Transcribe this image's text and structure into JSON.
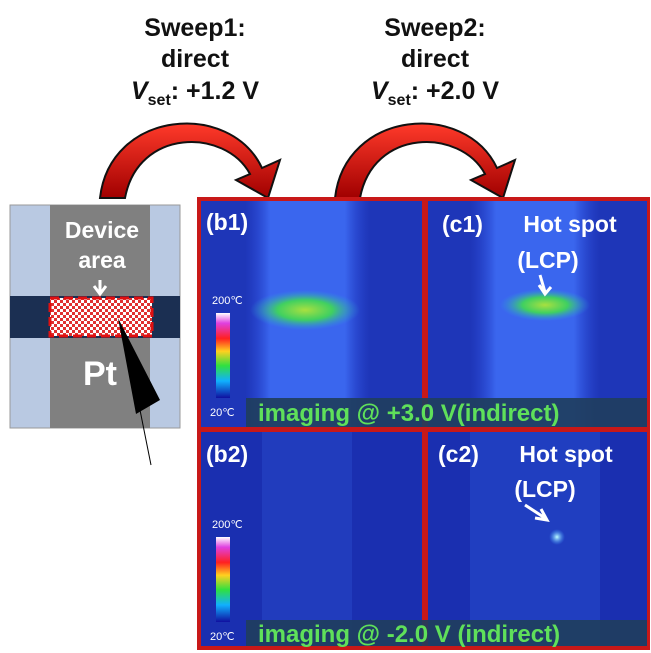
{
  "sweeps": [
    {
      "title": "Sweep1:",
      "mode": "direct",
      "symbol": "V",
      "subscript": "set",
      "value": ": +1.2 V"
    },
    {
      "title": "Sweep2:",
      "mode": "direct",
      "symbol": "V",
      "subscript": "set",
      "value": ": +2.0 V"
    }
  ],
  "device": {
    "label_line1": "Device",
    "label_line2": "area",
    "material": "Pt"
  },
  "panels": [
    {
      "id": "(b1)"
    },
    {
      "id": "(c1)",
      "label": "Hot spot",
      "sublabel": "(LCP)"
    },
    {
      "id": "(b2)"
    },
    {
      "id": "(c2)",
      "label": "Hot spot",
      "sublabel": "(LCP)"
    }
  ],
  "scales": [
    {
      "max": "200℃",
      "min": "20℃"
    },
    {
      "max": "200℃",
      "min": "20℃"
    }
  ],
  "banners": [
    "imaging @ +3.0 V(indirect)",
    "imaging @ -2.0 V (indirect)"
  ]
}
